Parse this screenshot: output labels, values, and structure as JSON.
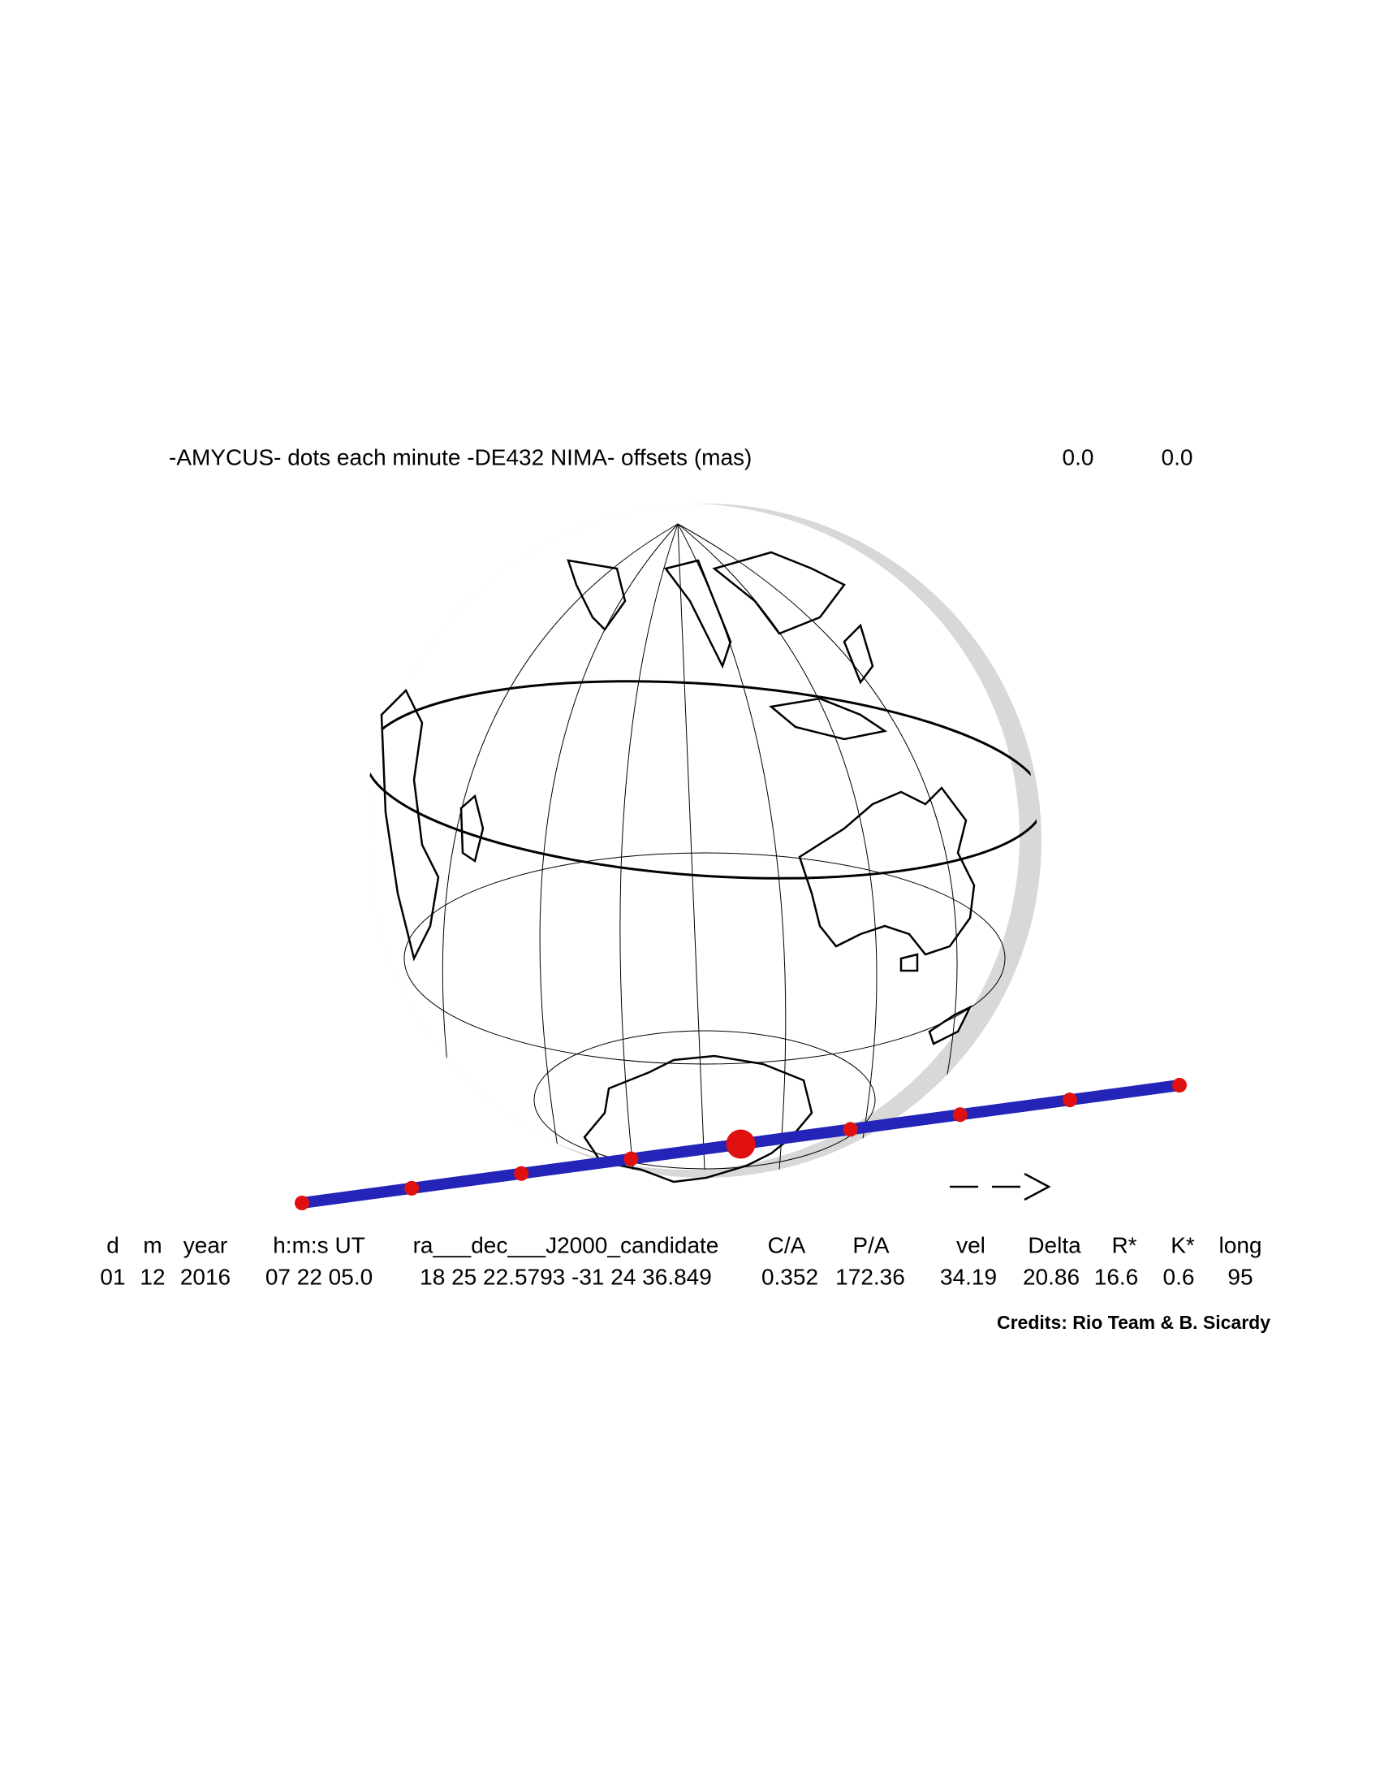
{
  "title": "-AMYCUS- dots each minute -DE432 NIMA- offsets (mas)",
  "offsets": [
    "0.0",
    "0.0"
  ],
  "table": {
    "headers": [
      "d",
      "m",
      "year",
      "h:m:s UT",
      "ra___dec___J2000_candidate",
      "C/A",
      "P/A",
      "vel",
      "Delta",
      "R*",
      "K*",
      "long"
    ],
    "values": [
      "01",
      "12",
      "2016",
      "07 22 05.0",
      "18 25 22.5793 -31 24 36.849",
      "0.352",
      "172.36",
      "34.19",
      "20.86",
      "16.6",
      "0.6",
      "95"
    ]
  },
  "credits": "Credits: Rio Team & B. Sicardy"
}
